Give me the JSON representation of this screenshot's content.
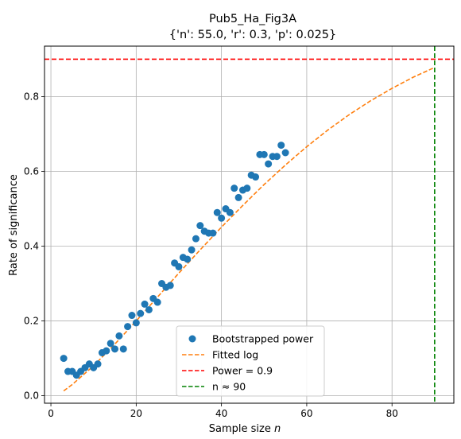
{
  "chart_data": {
    "type": "scatter",
    "title": "Pub5_Ha_Fig3A",
    "subtitle": "{'n': 55.0, 'r': 0.3, 'p': 0.025}",
    "xlabel_main": "Sample size ",
    "xlabel_var": "n",
    "ylabel": "Rate of significance",
    "xlim": [
      -1.5,
      94.5
    ],
    "ylim": [
      -0.02,
      0.935
    ],
    "grid": true,
    "legend_position": "lower center",
    "x_ticks": [
      0,
      20,
      40,
      60,
      80
    ],
    "y_ticks": [
      0.0,
      0.2,
      0.4,
      0.6,
      0.8
    ],
    "x_tick_labels": [
      "0",
      "20",
      "40",
      "60",
      "80"
    ],
    "y_tick_labels": [
      "0.0",
      "0.2",
      "0.4",
      "0.6",
      "0.8"
    ],
    "series": [
      {
        "name": "Bootstrapped power",
        "kind": "points",
        "color": "#1f77b4",
        "x": [
          3,
          4,
          5,
          6,
          7,
          8,
          9,
          10,
          11,
          12,
          13,
          14,
          15,
          16,
          17,
          18,
          19,
          20,
          21,
          22,
          23,
          24,
          25,
          26,
          27,
          28,
          29,
          30,
          31,
          32,
          33,
          34,
          35,
          36,
          37,
          38,
          39,
          40,
          41,
          42,
          43,
          44,
          45,
          46,
          47,
          48,
          49,
          50,
          51,
          52,
          53,
          54,
          55
        ],
        "y": [
          0.1,
          0.065,
          0.065,
          0.055,
          0.065,
          0.075,
          0.085,
          0.075,
          0.085,
          0.115,
          0.12,
          0.14,
          0.125,
          0.16,
          0.125,
          0.185,
          0.215,
          0.195,
          0.22,
          0.245,
          0.23,
          0.26,
          0.25,
          0.3,
          0.29,
          0.295,
          0.355,
          0.345,
          0.37,
          0.365,
          0.39,
          0.42,
          0.455,
          0.44,
          0.435,
          0.435,
          0.49,
          0.475,
          0.5,
          0.49,
          0.555,
          0.53,
          0.55,
          0.555,
          0.59,
          0.585,
          0.645,
          0.645,
          0.62,
          0.64,
          0.64,
          0.67,
          0.65
        ]
      },
      {
        "name": "Fitted log",
        "kind": "dashed-line",
        "color": "#ff7f0e",
        "x": [
          3,
          5,
          10,
          15,
          20,
          25,
          30,
          35,
          40,
          45,
          50,
          55,
          60,
          65,
          70,
          75,
          80,
          85,
          90
        ],
        "y": [
          0.013,
          0.03,
          0.08,
          0.138,
          0.2,
          0.264,
          0.328,
          0.39,
          0.451,
          0.509,
          0.565,
          0.617,
          0.666,
          0.711,
          0.752,
          0.789,
          0.822,
          0.852,
          0.878
        ]
      }
    ],
    "reference_lines": [
      {
        "name": "Power = 0.9",
        "orientation": "horizontal",
        "value": 0.9,
        "color": "#ff0000"
      },
      {
        "name": "n ≈ 90",
        "orientation": "vertical",
        "value": 90,
        "color": "#008000"
      }
    ]
  }
}
